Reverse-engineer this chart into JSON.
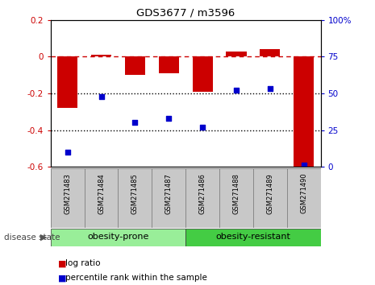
{
  "title": "GDS3677 / m3596",
  "samples": [
    "GSM271483",
    "GSM271484",
    "GSM271485",
    "GSM271487",
    "GSM271486",
    "GSM271488",
    "GSM271489",
    "GSM271490"
  ],
  "log_ratio": [
    -0.28,
    0.01,
    -0.1,
    -0.09,
    -0.19,
    0.03,
    0.04,
    -0.62
  ],
  "percentile_rank": [
    10,
    48,
    30,
    33,
    27,
    52,
    53,
    1
  ],
  "ylim_left": [
    -0.6,
    0.2
  ],
  "ylim_right": [
    0,
    100
  ],
  "left_ticks": [
    0.2,
    0.0,
    -0.2,
    -0.4,
    -0.6
  ],
  "right_ticks": [
    100,
    75,
    50,
    25,
    0
  ],
  "bar_color": "#cc0000",
  "dot_color": "#0000cc",
  "dashed_line_color": "#cc0000",
  "dotted_line_color": "#000000",
  "group1_label": "obesity-prone",
  "group2_label": "obesity-resistant",
  "group1_color": "#99ee99",
  "group2_color": "#44cc44",
  "group1_indices": [
    0,
    1,
    2,
    3
  ],
  "group2_indices": [
    4,
    5,
    6,
    7
  ],
  "disease_state_label": "disease state",
  "legend_bar_label": "log ratio",
  "legend_dot_label": "percentile rank within the sample",
  "plot_bg": "#ffffff",
  "tick_label_color_left": "#cc0000",
  "tick_label_color_right": "#0000cc",
  "box_color": "#c8c8c8"
}
